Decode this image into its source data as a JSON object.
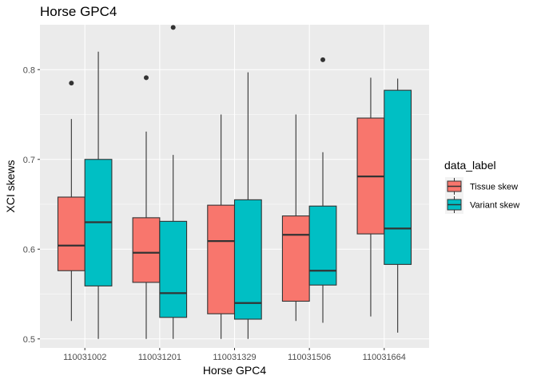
{
  "chart_data": {
    "type": "boxplot",
    "title": "Horse GPC4",
    "xlabel": "Horse GPC4",
    "ylabel": "XCI skews",
    "categories": [
      "110031002",
      "110031201",
      "110031329",
      "110031506",
      "110031664"
    ],
    "ylim": [
      0.49,
      0.85
    ],
    "yticks": [
      0.5,
      0.6,
      0.7,
      0.8
    ],
    "ytick_labels": [
      "0.5",
      "0.6",
      "0.7",
      "0.8"
    ],
    "grid": true,
    "legend": {
      "title": "data_label",
      "position": "right"
    },
    "series": [
      {
        "name": "Tissue skew",
        "color": "#F8766D",
        "boxes": [
          {
            "min": 0.52,
            "q1": 0.576,
            "median": 0.604,
            "q3": 0.658,
            "max": 0.745,
            "outliers": [
              0.785
            ]
          },
          {
            "min": 0.5,
            "q1": 0.563,
            "median": 0.596,
            "q3": 0.635,
            "max": 0.731,
            "outliers": [
              0.791
            ]
          },
          {
            "min": 0.5,
            "q1": 0.528,
            "median": 0.609,
            "q3": 0.649,
            "max": 0.75,
            "outliers": []
          },
          {
            "min": 0.52,
            "q1": 0.542,
            "median": 0.616,
            "q3": 0.637,
            "max": 0.75,
            "outliers": []
          },
          {
            "min": 0.525,
            "q1": 0.617,
            "median": 0.681,
            "q3": 0.746,
            "max": 0.791,
            "outliers": []
          }
        ]
      },
      {
        "name": "Variant skew",
        "color": "#00BFC4",
        "boxes": [
          {
            "min": 0.5,
            "q1": 0.559,
            "median": 0.63,
            "q3": 0.7,
            "max": 0.82,
            "outliers": []
          },
          {
            "min": 0.5,
            "q1": 0.524,
            "median": 0.551,
            "q3": 0.631,
            "max": 0.705,
            "outliers": [
              0.847
            ]
          },
          {
            "min": 0.5,
            "q1": 0.522,
            "median": 0.54,
            "q3": 0.655,
            "max": 0.797,
            "outliers": []
          },
          {
            "min": 0.518,
            "q1": 0.56,
            "median": 0.576,
            "q3": 0.648,
            "max": 0.708,
            "outliers": [
              0.811
            ]
          },
          {
            "min": 0.507,
            "q1": 0.583,
            "median": 0.623,
            "q3": 0.777,
            "max": 0.79,
            "outliers": []
          }
        ]
      }
    ]
  }
}
